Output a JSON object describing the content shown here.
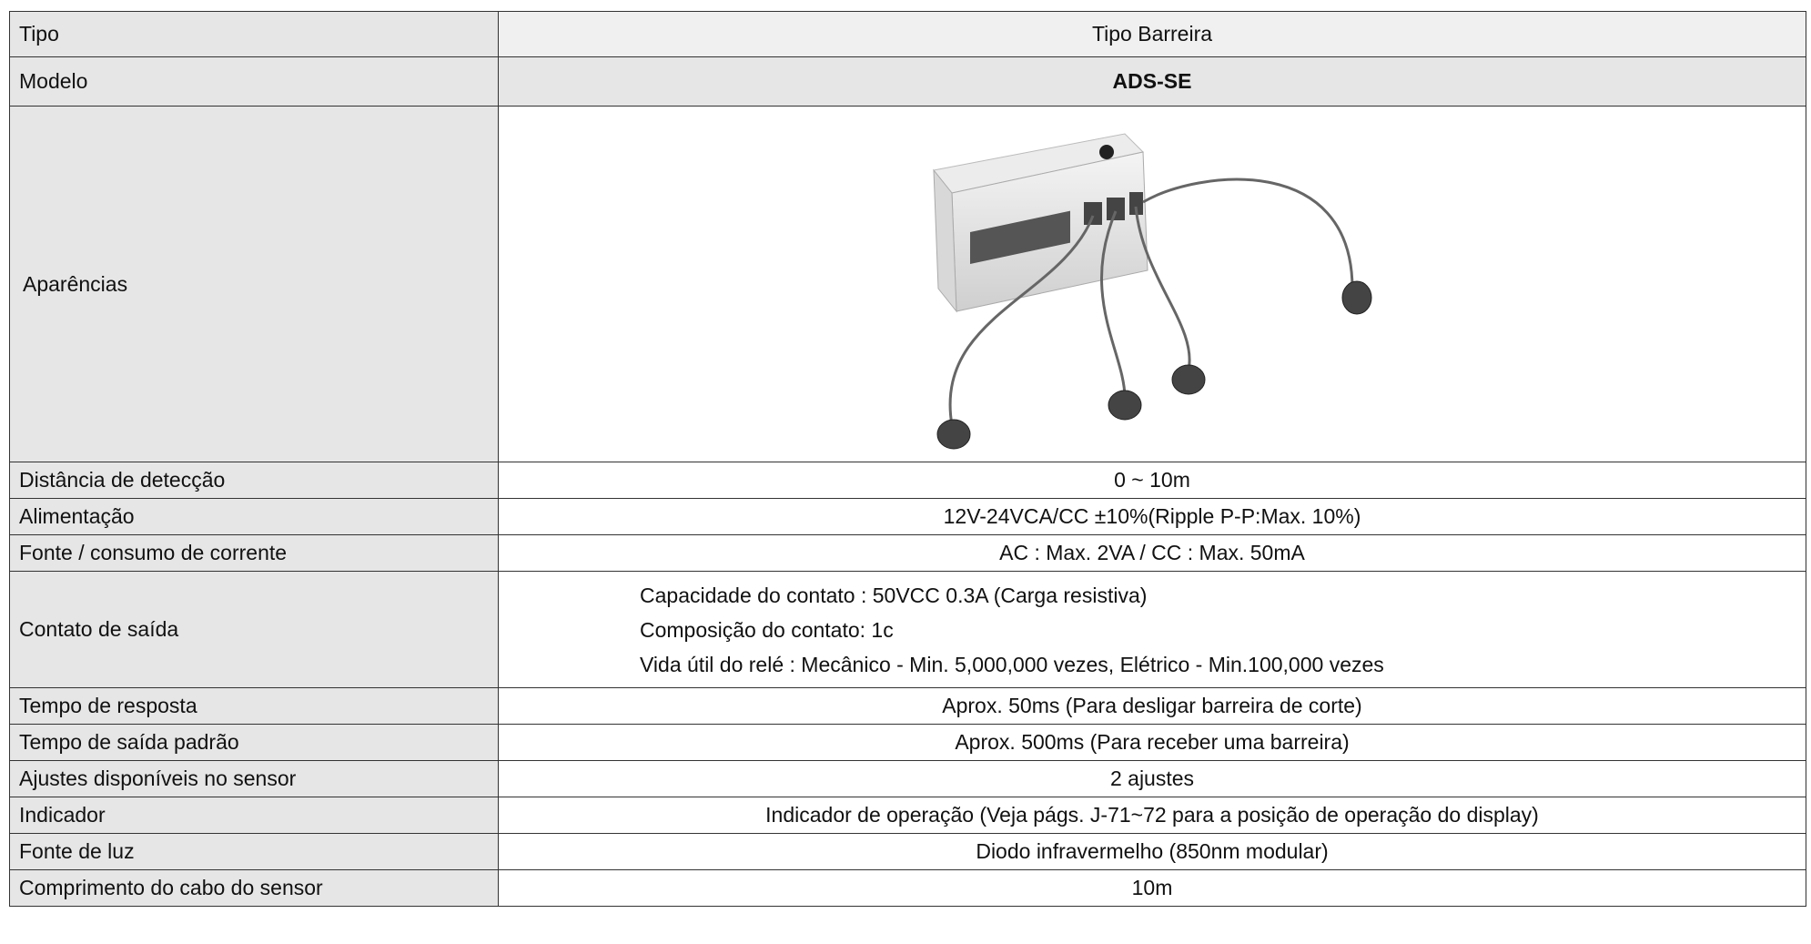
{
  "table": {
    "rows": [
      {
        "label": "Tipo",
        "value": "Tipo Barreira"
      },
      {
        "label": "Modelo",
        "value": "ADS-SE"
      },
      {
        "label": "Aparências"
      },
      {
        "label": "Distância de detecção",
        "value": "0 ~ 10m"
      },
      {
        "label": "Alimentação",
        "value": "12V-24VCA/CC ±10%(Ripple P-P:Max. 10%)"
      },
      {
        "label": "Fonte / consumo de corrente",
        "value": "AC : Max. 2VA / CC : Max. 50mA"
      },
      {
        "label": "Contato de saída",
        "lines": [
          "Capacidade do contato : 50VCC 0.3A (Carga resistiva)",
          "Composição do contato: 1c",
          "Vida útil do relé : Mecânico - Min. 5,000,000 vezes, Elétrico - Min.100,000 vezes"
        ]
      },
      {
        "label": "Tempo de resposta",
        "value": "Aprox. 50ms (Para desligar barreira de corte)"
      },
      {
        "label": "Tempo de saída padrão",
        "value": "Aprox. 500ms (Para receber uma barreira)"
      },
      {
        "label": "Ajustes disponíveis no sensor",
        "value": "2 ajustes"
      },
      {
        "label": "Indicador",
        "value": "Indicador de operação (Veja págs. J-71~72 para a posição de operação do display)"
      },
      {
        "label": "Fonte de luz",
        "value": "Diodo infravermelho (850nm modular)"
      },
      {
        "label": "Comprimento do cabo do sensor",
        "value": "10m"
      }
    ]
  }
}
